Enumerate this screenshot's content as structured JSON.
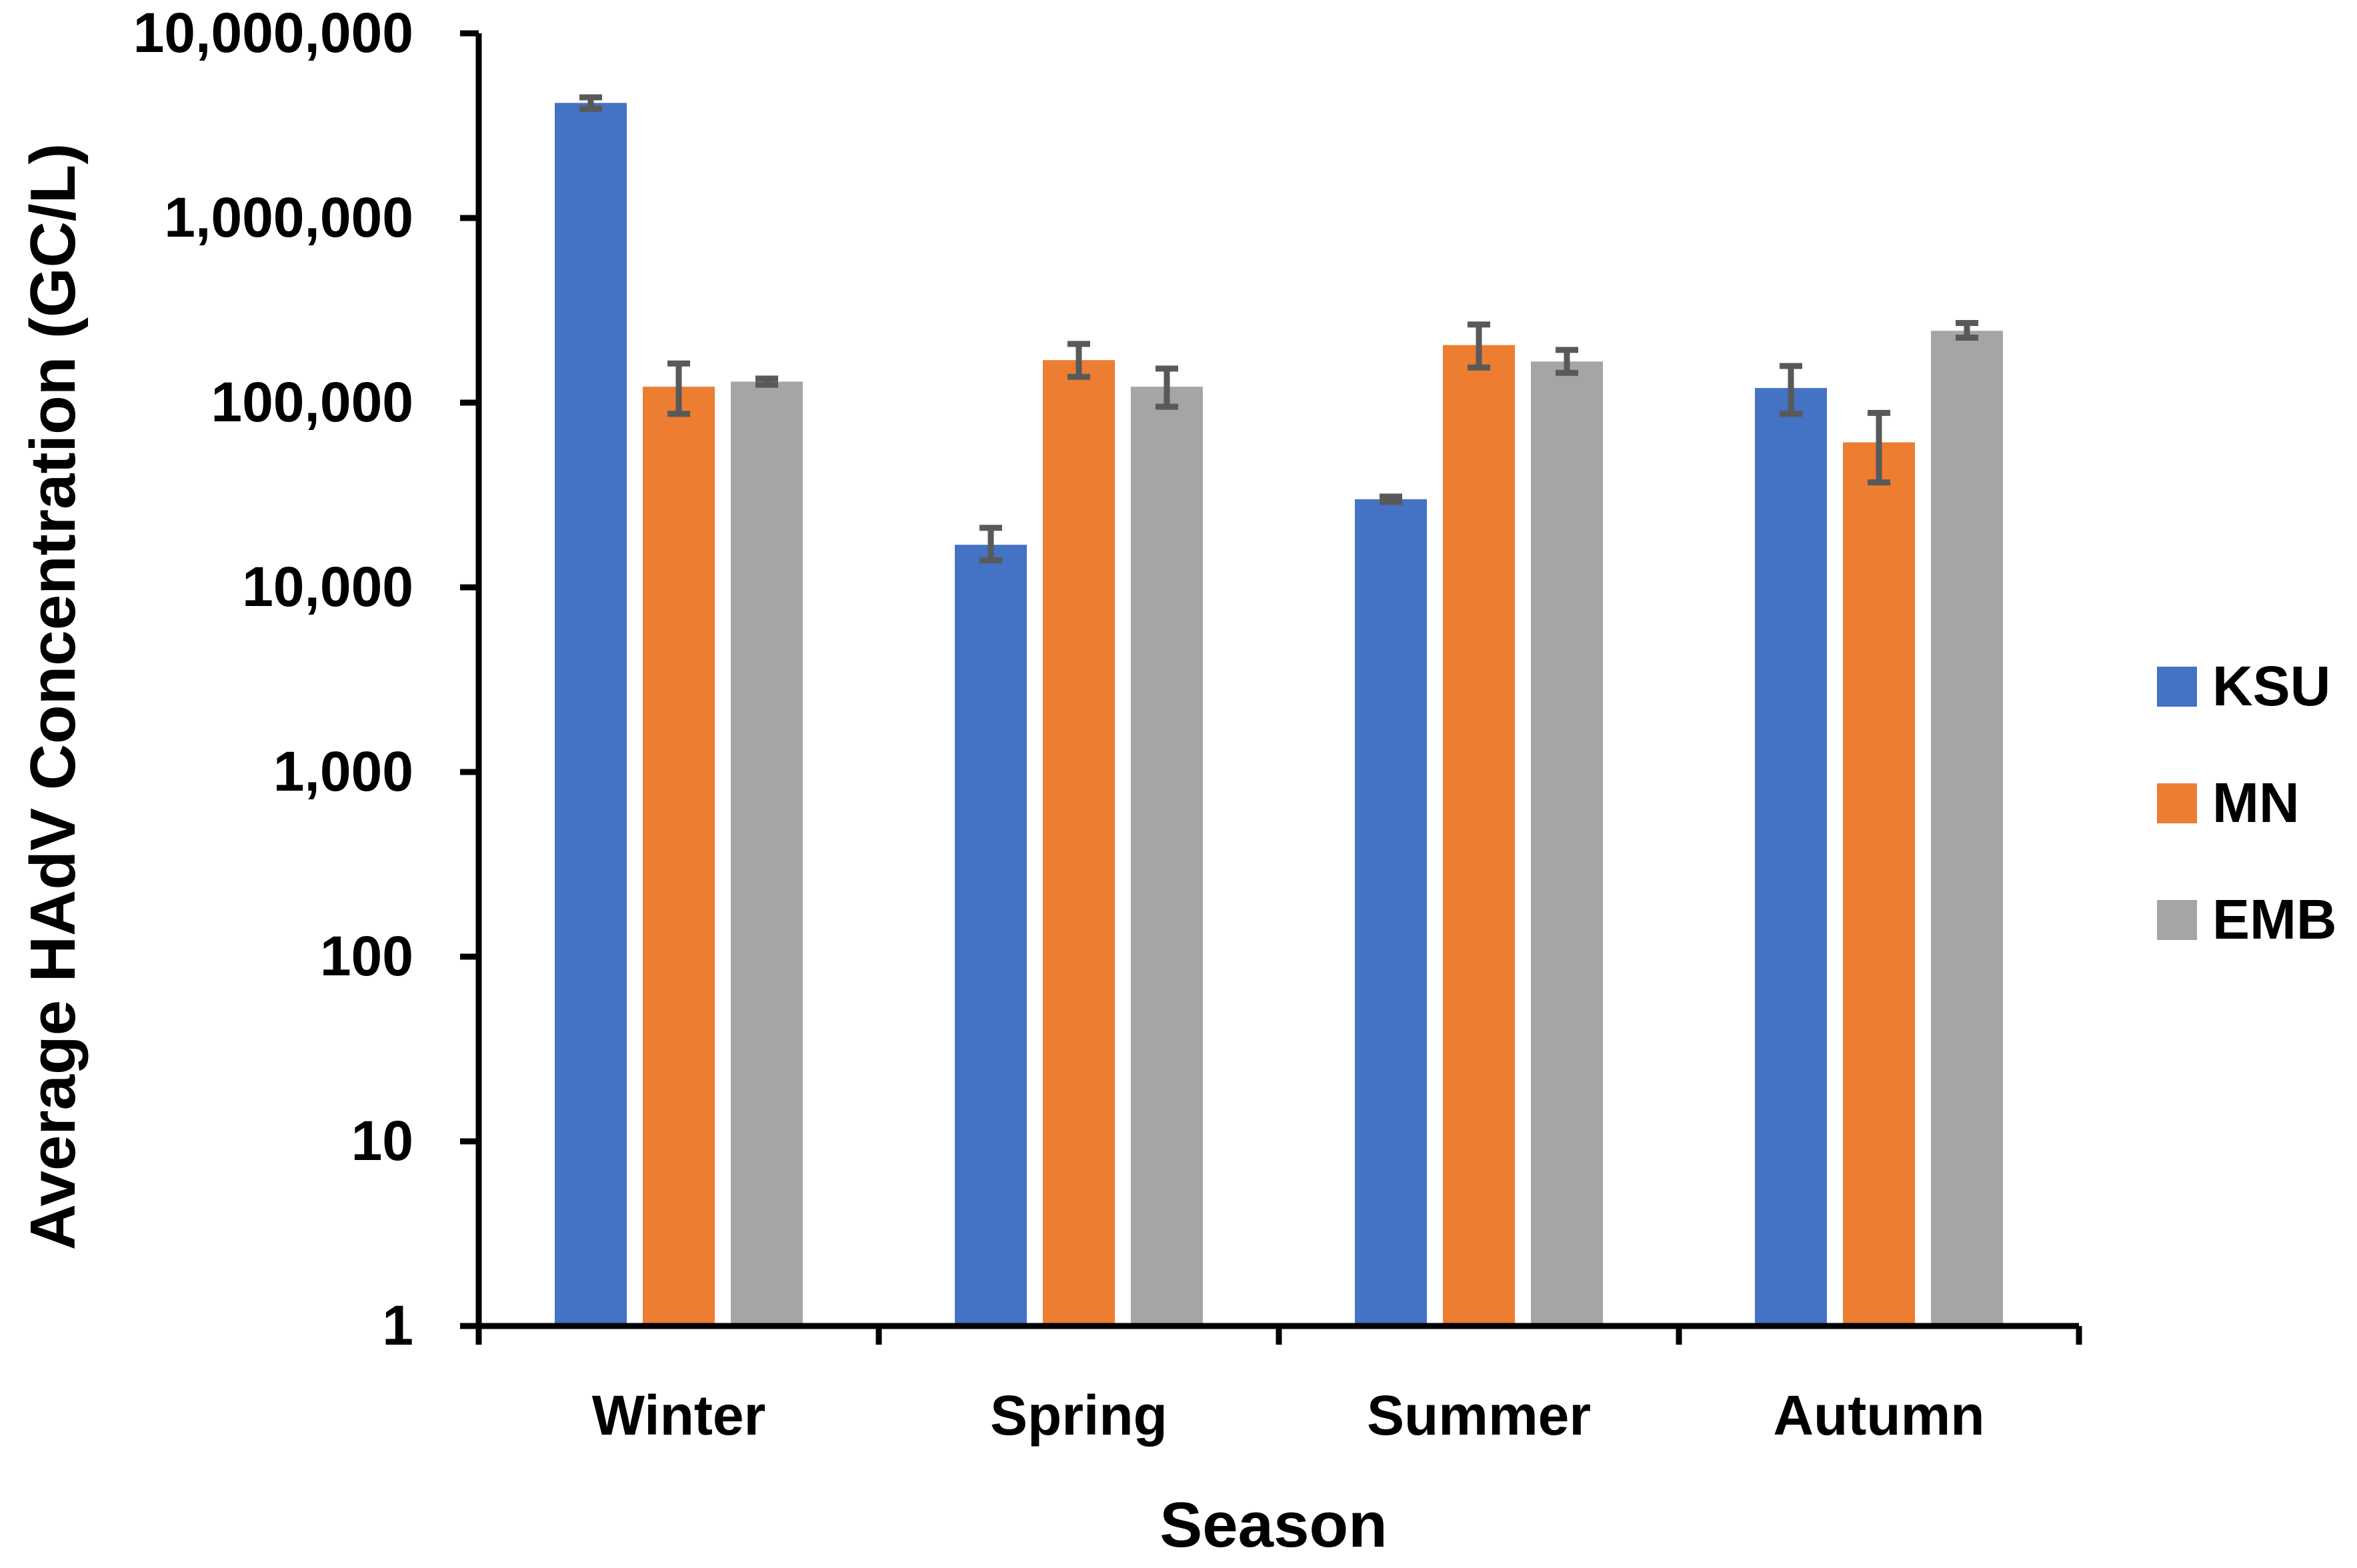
{
  "chart_data": {
    "type": "bar",
    "scale": "log",
    "title": "",
    "xlabel": "Season",
    "ylabel": "Average HAdV Concentration (GC/L)",
    "ylim": [
      1,
      10000000
    ],
    "yticks": [
      {
        "value": 1,
        "label": "1"
      },
      {
        "value": 10,
        "label": "10"
      },
      {
        "value": 100,
        "label": "100"
      },
      {
        "value": 1000,
        "label": "1,000"
      },
      {
        "value": 10000,
        "label": "10,000"
      },
      {
        "value": 100000,
        "label": "100,000"
      },
      {
        "value": 1000000,
        "label": "1,000,000"
      },
      {
        "value": 10000000,
        "label": "10,000,000"
      }
    ],
    "categories": [
      "Winter",
      "Spring",
      "Summer",
      "Autumn"
    ],
    "legend_position": "right",
    "series": [
      {
        "name": "KSU",
        "color": "#4472C4",
        "values": [
          4200000,
          17000,
          30000,
          120000
        ],
        "err_low": [
          3900000,
          14000,
          29000,
          87000
        ],
        "err_high": [
          4500000,
          21000,
          31000,
          158000
        ]
      },
      {
        "name": "MN",
        "color": "#ED7D31",
        "values": [
          122000,
          170000,
          205000,
          61000
        ],
        "err_low": [
          87000,
          138000,
          155000,
          37000
        ],
        "err_high": [
          163000,
          208000,
          265000,
          88000
        ]
      },
      {
        "name": "EMB",
        "color": "#A5A5A5",
        "values": [
          130000,
          122000,
          167000,
          245000
        ],
        "err_low": [
          125000,
          95000,
          145000,
          225000
        ],
        "err_high": [
          135000,
          153000,
          193000,
          270000
        ]
      }
    ],
    "error_bar_color": "#595959"
  }
}
